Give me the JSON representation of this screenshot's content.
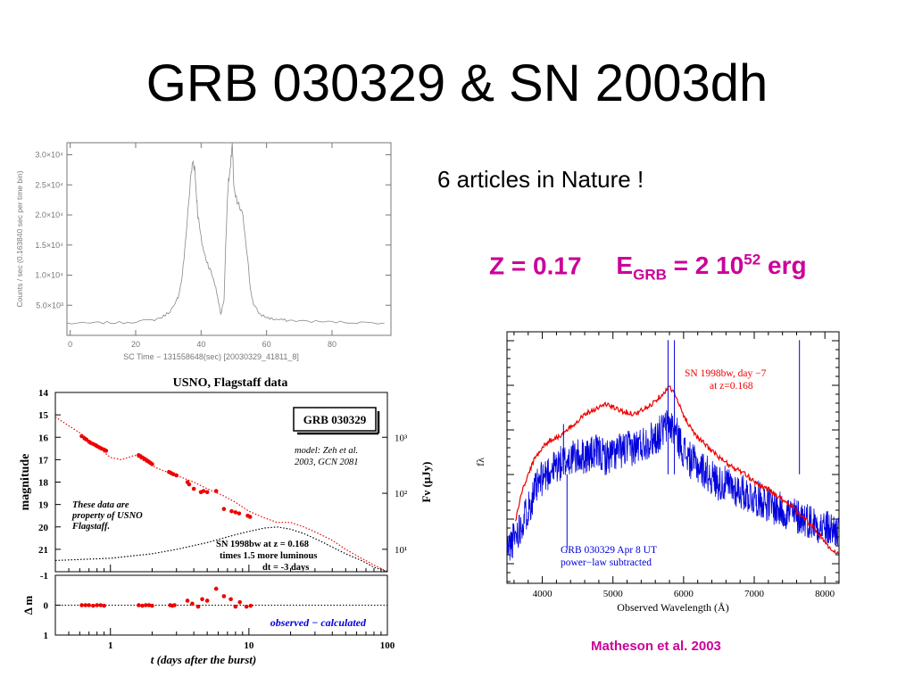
{
  "title": "GRB 030329 & SN 2003dh",
  "note": "6 articles in Nature !",
  "params": {
    "z": "Z = 0.17",
    "e_prefix": "E",
    "e_sub": "GRB",
    "e_mid": " = 2 10",
    "e_sup": "52",
    "e_unit": " erg"
  },
  "credit": "Matheson et al. 2003",
  "colors": {
    "accent": "#cc0099",
    "red": "#ee0000",
    "blue": "#0000dd"
  },
  "chart_data": [
    {
      "type": "line",
      "xlabel": "SC Time − 131558648(sec)    [20030329_41811_8]",
      "ylabel": "Counts / sec   (0.163840 sec per time bin)",
      "xlim": [
        -1,
        98
      ],
      "ylim": [
        0,
        32000
      ],
      "xticks": [
        "0",
        "20",
        "40",
        "60",
        "80"
      ],
      "yticks": [
        "5.0×10³",
        "1.0×10⁴",
        "1.5×10⁴",
        "2.0×10⁴",
        "2.5×10⁴",
        "3.0×10⁴"
      ],
      "series": [
        {
          "x": [
            -1,
            5,
            10,
            15,
            20,
            25,
            28,
            30,
            32,
            33,
            34,
            35,
            36,
            37,
            37.5,
            38,
            38.5,
            39,
            40,
            41,
            42,
            43,
            44,
            45,
            46,
            47,
            48,
            48.5,
            49,
            49.5,
            50,
            51,
            52,
            53,
            54,
            55,
            56,
            58,
            60,
            62,
            64,
            66,
            70,
            75,
            80,
            85,
            90,
            98
          ],
          "y": [
            2000,
            2000,
            2100,
            2100,
            2300,
            2500,
            3000,
            3800,
            5000,
            6500,
            9000,
            14000,
            21000,
            27000,
            29000,
            28000,
            24000,
            20000,
            16000,
            13500,
            12000,
            10500,
            9000,
            6500,
            3500,
            6000,
            23000,
            26000,
            27500,
            33000,
            24000,
            22000,
            21000,
            19000,
            14000,
            8000,
            5000,
            3500,
            3000,
            2700,
            2600,
            2500,
            2400,
            2300,
            2200,
            2200,
            2100,
            2100
          ]
        }
      ]
    },
    {
      "type": "scatter",
      "title": "USNO, Flagstaff data",
      "legend_box": "GRB 030329",
      "annotations": [
        "model: Zeh et al.",
        "2003, GCN 2081",
        "These data are",
        "property of USNO",
        "Flagstaff.",
        "SN 1998bw at  z = 0.168",
        "times 1.5 more luminous",
        "dt = -3 days"
      ],
      "xlabel": "t (days after the burst)",
      "ylabel": "magnitude",
      "ylabel_right": "Fν (μJy)",
      "xscale": "log",
      "xlim": [
        0.4,
        100
      ],
      "ylim": [
        22.0,
        14.0
      ],
      "xticks": [
        "1",
        "10",
        "100"
      ],
      "yticks": [
        "14",
        "15",
        "16",
        "17",
        "18",
        "19",
        "20",
        "21"
      ],
      "yticks_right": [
        "10³",
        "10²",
        "10¹"
      ],
      "series": [
        {
          "name": "observed",
          "x": [
            0.62,
            0.65,
            0.67,
            0.7,
            0.72,
            0.75,
            0.78,
            0.8,
            0.83,
            0.86,
            0.9,
            0.93,
            1.6,
            1.65,
            1.7,
            1.75,
            1.8,
            1.85,
            1.9,
            1.95,
            2.0,
            2.65,
            2.75,
            2.85,
            3.0,
            3.6,
            3.7,
            4.0,
            4.5,
            4.7,
            5.0,
            5.8,
            6.6,
            7.5,
            8.0,
            8.5,
            9.8,
            10.2
          ],
          "y": [
            15.95,
            16.05,
            16.1,
            16.2,
            16.25,
            16.3,
            16.35,
            16.4,
            16.45,
            16.5,
            16.55,
            16.6,
            16.8,
            16.85,
            16.9,
            16.95,
            17.0,
            17.05,
            17.1,
            17.15,
            17.2,
            17.55,
            17.6,
            17.65,
            17.7,
            18.0,
            18.1,
            18.3,
            18.45,
            18.4,
            18.45,
            18.4,
            19.2,
            19.3,
            19.35,
            19.4,
            19.5,
            19.55
          ]
        },
        {
          "name": "model",
          "x": [
            0.4,
            0.6,
            0.8,
            1.0,
            1.2,
            1.5,
            1.8,
            2.2,
            2.7,
            3.3,
            4,
            5,
            6.5,
            8,
            10,
            13,
            16,
            20,
            25,
            32,
            40,
            50,
            65,
            80,
            100
          ],
          "y": [
            15.1,
            15.8,
            16.4,
            16.9,
            17.0,
            16.8,
            17.1,
            17.4,
            17.6,
            17.8,
            18.0,
            18.3,
            18.6,
            18.9,
            19.3,
            19.6,
            19.8,
            19.8,
            20.0,
            20.3,
            20.6,
            21.0,
            21.4,
            21.7,
            22.0
          ]
        },
        {
          "name": "SN 1998bw",
          "x": [
            0.4,
            1,
            2,
            3,
            5,
            8,
            10,
            13,
            16,
            20,
            25,
            32,
            40,
            50,
            65,
            80,
            100
          ],
          "y": [
            21.5,
            21.4,
            21.2,
            21.0,
            20.7,
            20.35,
            20.2,
            20.05,
            20.0,
            20.1,
            20.3,
            20.6,
            20.9,
            21.2,
            21.5,
            21.8,
            22.0
          ]
        }
      ]
    },
    {
      "type": "scatter",
      "xlabel": "",
      "ylabel": "Δ m",
      "xscale": "log",
      "xlim": [
        0.4,
        100
      ],
      "ylim": [
        1,
        -1
      ],
      "yticks": [
        "-1",
        "0",
        "1"
      ],
      "legend": "observed − calculated",
      "series": [
        {
          "name": "residual",
          "x": [
            0.62,
            0.66,
            0.7,
            0.75,
            0.8,
            0.85,
            0.9,
            1.6,
            1.7,
            1.8,
            1.9,
            2.0,
            2.7,
            2.8,
            2.9,
            3.6,
            3.9,
            4.3,
            4.6,
            5.0,
            5.8,
            6.6,
            7.4,
            8.0,
            8.6,
            9.6,
            10.3
          ],
          "y": [
            0.0,
            0.0,
            0.0,
            0.02,
            0.0,
            0.0,
            0.02,
            0.0,
            0.02,
            0.0,
            0.0,
            0.02,
            0.0,
            0.02,
            0.0,
            -0.15,
            -0.05,
            0.05,
            -0.2,
            -0.15,
            -0.55,
            -0.3,
            -0.2,
            0.05,
            -0.1,
            0.05,
            0.02
          ]
        }
      ]
    },
    {
      "type": "line",
      "xlabel": "Observed Wavelength (Å)",
      "ylabel": "fλ",
      "xlim": [
        3500,
        8200
      ],
      "xticks": [
        "4000",
        "5000",
        "6000",
        "7000",
        "8000"
      ],
      "legend": [
        "SN 1998bw, day −7",
        "at z=0.168",
        "GRB 030329 Apr 8 UT",
        "power−law subtracted"
      ],
      "series": [
        {
          "name": "SN 1998bw",
          "color": "#ee0000",
          "x": [
            3620,
            3700,
            3800,
            3900,
            4000,
            4100,
            4200,
            4300,
            4400,
            4500,
            4600,
            4700,
            4800,
            4900,
            5000,
            5100,
            5200,
            5300,
            5400,
            5500,
            5600,
            5700,
            5800,
            5850,
            5900,
            6000,
            6100,
            6200,
            6300,
            6400,
            6500,
            6600,
            6700,
            6800,
            6900,
            7000,
            7100,
            7200,
            7300,
            7400,
            7500,
            7600,
            7700,
            7800,
            7900,
            8000,
            8100,
            8200
          ],
          "y": [
            0.22,
            0.38,
            0.5,
            0.6,
            0.66,
            0.7,
            0.72,
            0.74,
            0.78,
            0.82,
            0.86,
            0.88,
            0.9,
            0.92,
            0.9,
            0.88,
            0.87,
            0.86,
            0.88,
            0.9,
            0.94,
            0.98,
            1.02,
            1.0,
            0.95,
            0.85,
            0.78,
            0.72,
            0.68,
            0.64,
            0.6,
            0.57,
            0.54,
            0.52,
            0.49,
            0.46,
            0.43,
            0.41,
            0.38,
            0.35,
            0.32,
            0.28,
            0.24,
            0.2,
            0.15,
            0.1,
            0.04,
            0.02
          ]
        },
        {
          "name": "GRB 030329 Apr 8 UT",
          "color": "#0000dd",
          "x": [
            3500,
            3600,
            3700,
            3800,
            3900,
            4000,
            4100,
            4200,
            4300,
            4400,
            4500,
            4600,
            4700,
            4800,
            4900,
            5000,
            5100,
            5200,
            5300,
            5400,
            5500,
            5600,
            5700,
            5800,
            5900,
            6000,
            6100,
            6200,
            6300,
            6400,
            6500,
            6600,
            6700,
            6800,
            6900,
            7000,
            7100,
            7200,
            7300,
            7400,
            7500,
            7600,
            7700,
            7800,
            7900,
            8000,
            8100,
            8200
          ],
          "y": [
            0.05,
            0.12,
            0.2,
            0.3,
            0.4,
            0.48,
            0.52,
            0.55,
            0.57,
            0.6,
            0.6,
            0.61,
            0.62,
            0.63,
            0.6,
            0.62,
            0.64,
            0.65,
            0.66,
            0.68,
            0.7,
            0.72,
            0.76,
            0.8,
            0.74,
            0.64,
            0.58,
            0.55,
            0.52,
            0.48,
            0.45,
            0.44,
            0.42,
            0.4,
            0.38,
            0.36,
            0.35,
            0.32,
            0.3,
            0.28,
            0.27,
            0.25,
            0.24,
            0.22,
            0.2,
            0.18,
            0.17,
            0.16
          ]
        }
      ]
    }
  ]
}
